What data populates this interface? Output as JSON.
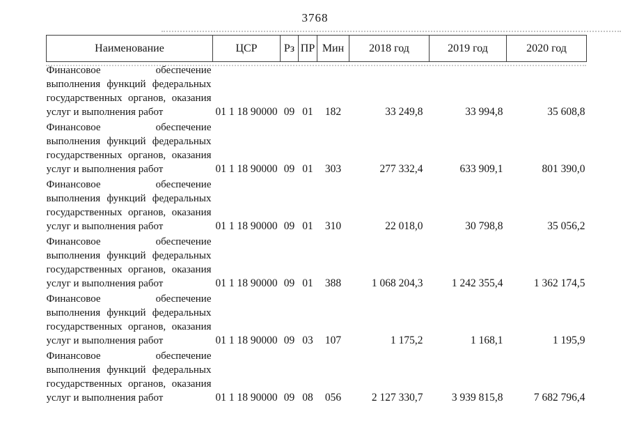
{
  "page": {
    "number": "3768"
  },
  "colors": {
    "border": "#3d3d3d",
    "text": "#151515",
    "artifact_gray": "#c2c2c2",
    "background": "#ffffff"
  },
  "table": {
    "headers": [
      "Наименование",
      "ЦСР",
      "Рз",
      "ПР",
      "Мин",
      "2018 год",
      "2019 год",
      "2020 год"
    ],
    "rows": [
      {
        "name_lines": [
          "Финансовое обеспечение",
          "выполнения функций федеральных",
          "государственных органов, оказания",
          "услуг и выполнения работ"
        ],
        "csr": "01 1 18 90000",
        "rz": "09",
        "pr": "01",
        "min": "182",
        "y2018": "33 249,8",
        "y2019": "33 994,8",
        "y2020": "35 608,8"
      },
      {
        "name_lines": [
          "Финансовое обеспечение",
          "выполнения функций федеральных",
          "государственных органов, оказания",
          "услуг и выполнения работ"
        ],
        "csr": "01 1 18 90000",
        "rz": "09",
        "pr": "01",
        "min": "303",
        "y2018": "277 332,4",
        "y2019": "633 909,1",
        "y2020": "801 390,0"
      },
      {
        "name_lines": [
          "Финансовое обеспечение",
          "выполнения функций федеральных",
          "государственных органов, оказания",
          "услуг и выполнения работ"
        ],
        "csr": "01 1 18 90000",
        "rz": "09",
        "pr": "01",
        "min": "310",
        "y2018": "22 018,0",
        "y2019": "30 798,8",
        "y2020": "35 056,2"
      },
      {
        "name_lines": [
          "Финансовое обеспечение",
          "выполнения функций федеральных",
          "государственных органов, оказания",
          "услуг и выполнения работ"
        ],
        "csr": "01 1 18 90000",
        "rz": "09",
        "pr": "01",
        "min": "388",
        "y2018": "1 068 204,3",
        "y2019": "1 242 355,4",
        "y2020": "1 362 174,5"
      },
      {
        "name_lines": [
          "Финансовое обеспечение",
          "выполнения функций федеральных",
          "государственных органов, оказания",
          "услуг и выполнения работ"
        ],
        "csr": "01 1 18 90000",
        "rz": "09",
        "pr": "03",
        "min": "107",
        "y2018": "1 175,2",
        "y2019": "1 168,1",
        "y2020": "1 195,9"
      },
      {
        "name_lines": [
          "Финансовое обеспечение",
          "выполнения функций федеральных",
          "государственных органов, оказания",
          "услуг и выполнения работ"
        ],
        "csr": "01 1 18 90000",
        "rz": "09",
        "pr": "08",
        "min": "056",
        "y2018": "2 127 330,7",
        "y2019": "3 939 815,8",
        "y2020": "7 682 796,4"
      }
    ]
  }
}
